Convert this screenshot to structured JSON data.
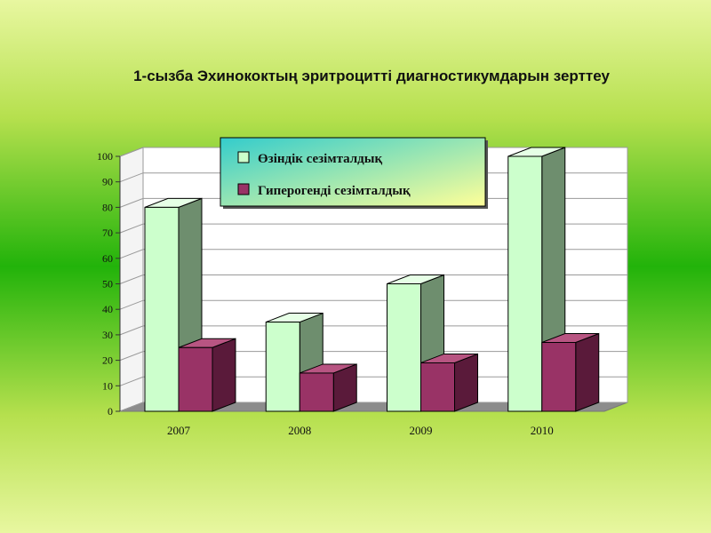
{
  "title": "1-сызба Эхинококтың эритроцитті диагностикумдарын зерттеу",
  "chart_data": {
    "type": "bar",
    "categories": [
      "2007",
      "2008",
      "2009",
      "2010"
    ],
    "series": [
      {
        "name": "Өзіндік сезімталдық",
        "values": [
          80,
          35,
          50,
          100
        ],
        "color": "#ccffcc",
        "side": "#6e8e6e",
        "top": "#e6ffe6"
      },
      {
        "name": "Гиперогенді сезімталдық",
        "values": [
          25,
          15,
          19,
          27
        ],
        "color": "#993366",
        "side": "#5a1a3a",
        "top": "#b85582"
      }
    ],
    "ylim": [
      0,
      100
    ],
    "yticks": [
      "0",
      "10",
      "20",
      "30",
      "40",
      "50",
      "60",
      "70",
      "80",
      "90",
      "100"
    ],
    "grid": true,
    "legend_position": "top"
  }
}
